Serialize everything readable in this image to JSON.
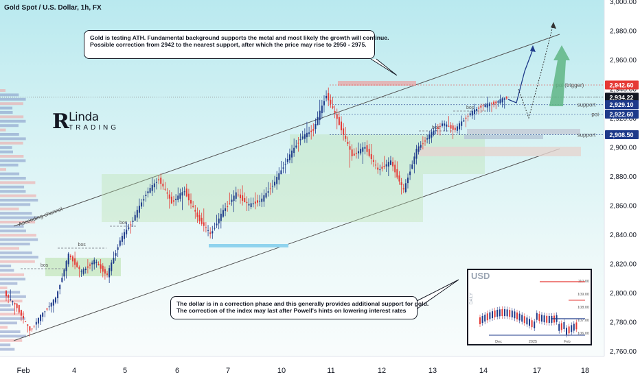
{
  "symbol": "Gold Spot / U.S. Dollar, 1h, FX",
  "callouts": {
    "top": [
      "Gold is testing ATH. Fundamental background supports the metal and most likely the growth will continue.",
      "Possible correction from 2942 to the nearest support, after which the price may rise to 2950 - 2975."
    ],
    "bottom": [
      "The dollar is in a correction phase and this generally provides additional support for gold.",
      "The correction of the index may last after Powell's hints on lowering interest rates"
    ]
  },
  "logo": {
    "mark": "R",
    "top": "Linda",
    "bottom": "TRADING"
  },
  "colors": {
    "bull": "#1e3a8a",
    "bear": "#e53935",
    "resistance": "#e53935",
    "support": "#1e3a8a",
    "zone": "#b6e0a8",
    "arrow": "#5fb585"
  },
  "chart_data": {
    "type": "candlestick",
    "y_axis": {
      "ticks": [
        "2,760.00",
        "2,780.00",
        "2,800.00",
        "2,820.00",
        "2,840.00",
        "2,860.00",
        "2,880.00",
        "2,900.00",
        "2,920.00",
        "2,940.00",
        "2,960.00",
        "2,980.00",
        "3,000.00"
      ],
      "range": [
        2754,
        3003
      ]
    },
    "x_axis": {
      "ticks": [
        "Feb",
        "4",
        "5",
        "6",
        "7",
        "10",
        "11",
        "12",
        "13",
        "14",
        "17",
        "18"
      ]
    },
    "price_labels": [
      {
        "text": "poi (trigger)",
        "value": 2942.6,
        "tag": "2,942.60",
        "color": "#e53935"
      },
      {
        "text": "",
        "value": 2934.22,
        "tag": "2,934.22",
        "color": "#131722"
      },
      {
        "text": "support",
        "value": 2929.1,
        "tag": "2,929.10",
        "color": "#1e3a8a"
      },
      {
        "text": "poi",
        "value": 2922.6,
        "tag": "2,922.60",
        "color": "#1e3a8a"
      },
      {
        "text": "support",
        "value": 2908.5,
        "tag": "2,908.50",
        "color": "#1e3a8a"
      }
    ],
    "annotations": [
      "bos",
      "bos",
      "bos",
      "bos",
      "bos"
    ],
    "channel_label": "Ascending channel",
    "series": [
      {
        "date": "Feb",
        "ohlc": [
          [
            2800,
            2810,
            2785,
            2790
          ],
          [
            2790,
            2795,
            2771,
            2774
          ],
          [
            2774,
            2790,
            2770,
            2786
          ],
          [
            2786,
            2800,
            2782,
            2796
          ]
        ]
      },
      {
        "date": "4",
        "ohlc": [
          [
            2796,
            2830,
            2794,
            2826
          ],
          [
            2826,
            2832,
            2810,
            2814
          ],
          [
            2814,
            2828,
            2808,
            2822
          ],
          [
            2822,
            2825,
            2808,
            2812
          ]
        ]
      },
      {
        "date": "5",
        "ohlc": [
          [
            2812,
            2840,
            2810,
            2836
          ],
          [
            2836,
            2855,
            2832,
            2850
          ],
          [
            2850,
            2872,
            2846,
            2868
          ],
          [
            2868,
            2882,
            2862,
            2878
          ]
        ]
      },
      {
        "date": "6",
        "ohlc": [
          [
            2878,
            2881,
            2856,
            2862
          ],
          [
            2862,
            2874,
            2852,
            2870
          ],
          [
            2870,
            2872,
            2848,
            2852
          ],
          [
            2852,
            2862,
            2834,
            2840
          ]
        ]
      },
      {
        "date": "7",
        "ohlc": [
          [
            2840,
            2860,
            2836,
            2856
          ],
          [
            2856,
            2874,
            2850,
            2868
          ],
          [
            2868,
            2873,
            2856,
            2860
          ],
          [
            2860,
            2868,
            2855,
            2864
          ]
        ]
      },
      {
        "date": "10",
        "ohlc": [
          [
            2864,
            2880,
            2860,
            2876
          ],
          [
            2876,
            2896,
            2872,
            2892
          ],
          [
            2892,
            2910,
            2888,
            2906
          ],
          [
            2906,
            2918,
            2900,
            2912
          ]
        ]
      },
      {
        "date": "11",
        "ohlc": [
          [
            2912,
            2942,
            2906,
            2936
          ],
          [
            2936,
            2940,
            2910,
            2916
          ],
          [
            2916,
            2920,
            2880,
            2894
          ],
          [
            2894,
            2904,
            2884,
            2900
          ]
        ]
      },
      {
        "date": "12",
        "ohlc": [
          [
            2900,
            2906,
            2880,
            2884
          ],
          [
            2884,
            2896,
            2878,
            2890
          ],
          [
            2890,
            2894,
            2866,
            2870
          ],
          [
            2870,
            2902,
            2864,
            2898
          ]
        ]
      },
      {
        "date": "13",
        "ohlc": [
          [
            2898,
            2912,
            2894,
            2908
          ],
          [
            2908,
            2920,
            2902,
            2916
          ],
          [
            2916,
            2924,
            2908,
            2912
          ],
          [
            2912,
            2926,
            2908,
            2922
          ]
        ]
      },
      {
        "date": "14",
        "ohlc": [
          [
            2922,
            2932,
            2918,
            2928
          ],
          [
            2928,
            2936,
            2922,
            2930
          ],
          [
            2930,
            2938,
            2926,
            2934
          ]
        ]
      }
    ]
  },
  "inset": {
    "title": "USD",
    "axis_left": "DAILY",
    "ticks_right": [
      "110.00",
      "109.00",
      "108.00",
      "107.00",
      "106.00"
    ],
    "ticks_bottom": [
      "Dec",
      "2025",
      "Feb"
    ]
  }
}
